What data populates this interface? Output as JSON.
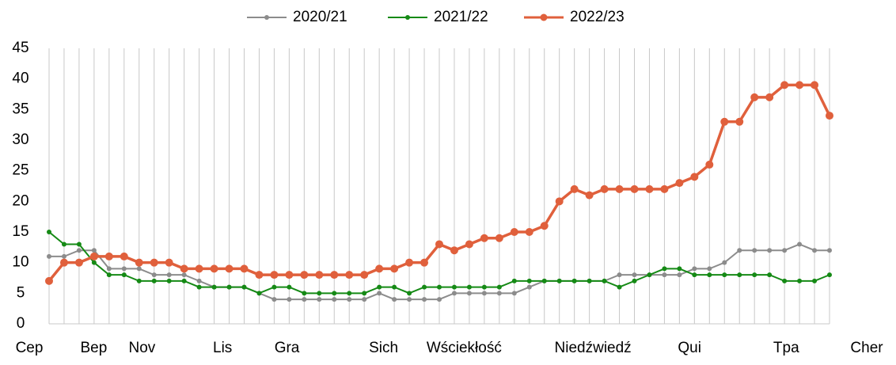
{
  "chart_data": {
    "type": "line",
    "categories": [
      "Cep",
      null,
      null,
      null,
      "Bep",
      null,
      null,
      "Nov",
      null,
      null,
      null,
      null,
      "Lis",
      null,
      null,
      null,
      "Gra",
      null,
      null,
      null,
      null,
      null,
      "Sich",
      null,
      null,
      null,
      null,
      "Wściekłość",
      null,
      null,
      null,
      null,
      null,
      null,
      null,
      "Niedźwiedź",
      null,
      null,
      null,
      null,
      null,
      "Qui",
      null,
      null,
      null,
      null,
      null,
      "Tpa",
      null,
      null,
      null,
      null,
      "Cher"
    ],
    "series": [
      {
        "name": "2020/21",
        "color": "#8c8c8c",
        "values": [
          11,
          11,
          12,
          12,
          9,
          9,
          9,
          8,
          8,
          8,
          7,
          6,
          6,
          6,
          5,
          4,
          4,
          4,
          4,
          4,
          4,
          4,
          5,
          4,
          4,
          4,
          4,
          5,
          5,
          5,
          5,
          5,
          6,
          7,
          7,
          7,
          7,
          7,
          8,
          8,
          8,
          8,
          8,
          9,
          9,
          10,
          12,
          12,
          12,
          12,
          13,
          12,
          12
        ]
      },
      {
        "name": "2021/22",
        "color": "#158a15",
        "values": [
          15,
          13,
          13,
          10,
          8,
          8,
          7,
          7,
          7,
          7,
          6,
          6,
          6,
          6,
          5,
          6,
          6,
          5,
          5,
          5,
          5,
          5,
          6,
          6,
          5,
          6,
          6,
          6,
          6,
          6,
          6,
          7,
          7,
          7,
          7,
          7,
          7,
          7,
          6,
          7,
          8,
          9,
          9,
          8,
          8,
          8,
          8,
          8,
          8,
          7,
          7,
          7,
          8
        ]
      },
      {
        "name": "2022/23",
        "color": "#e0603c",
        "values": [
          7,
          10,
          10,
          11,
          11,
          11,
          10,
          10,
          10,
          9,
          9,
          9,
          9,
          9,
          8,
          8,
          8,
          8,
          8,
          8,
          8,
          8,
          9,
          9,
          10,
          10,
          13,
          12,
          13,
          14,
          14,
          15,
          15,
          16,
          20,
          22,
          21,
          22,
          22,
          22,
          22,
          22,
          23,
          24,
          26,
          33,
          33,
          37,
          37,
          39,
          39,
          39,
          34
        ]
      }
    ],
    "ylim": [
      0,
      45
    ],
    "yticks": [
      0,
      5,
      10,
      15,
      20,
      25,
      30,
      35,
      40,
      45
    ],
    "grid": "x"
  }
}
